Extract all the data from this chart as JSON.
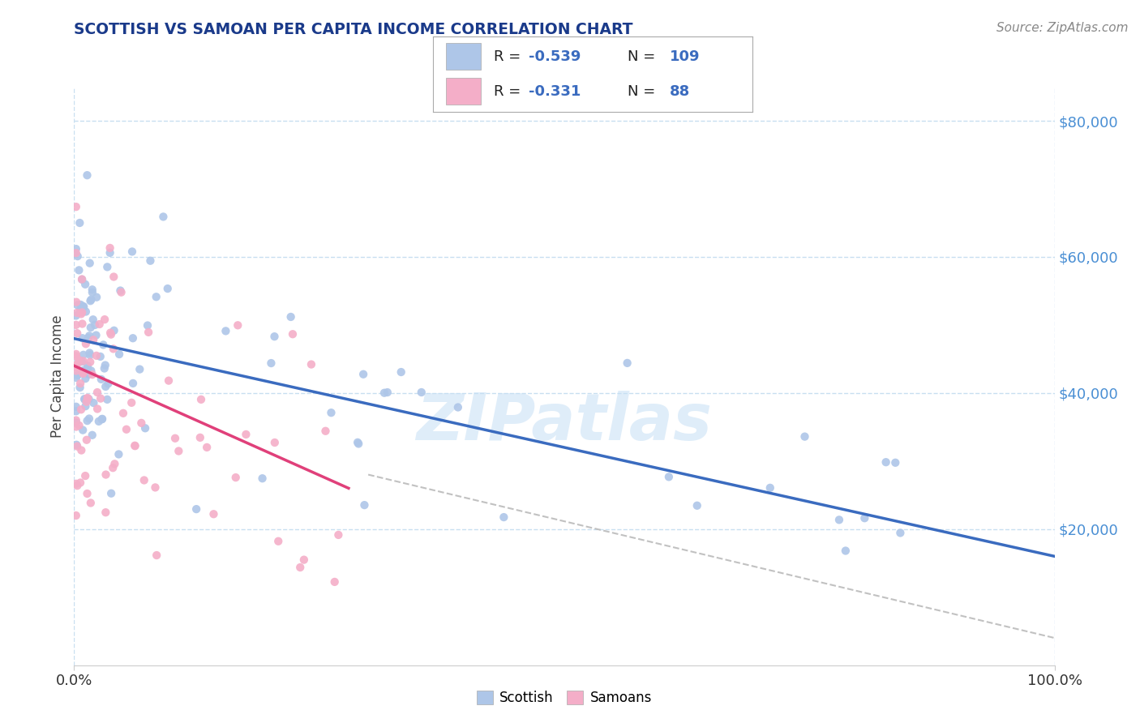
{
  "title": "SCOTTISH VS SAMOAN PER CAPITA INCOME CORRELATION CHART",
  "source_text": "Source: ZipAtlas.com",
  "ylabel": "Per Capita Income",
  "xlim": [
    0,
    100
  ],
  "ylim": [
    0,
    85000
  ],
  "yticks": [
    20000,
    40000,
    60000,
    80000
  ],
  "ytick_labels": [
    "$20,000",
    "$40,000",
    "$60,000",
    "$80,000"
  ],
  "xtick_labels": [
    "0.0%",
    "100.0%"
  ],
  "legend_label1": "Scottish",
  "legend_label2": "Samoans",
  "R1": -0.539,
  "N1": 109,
  "R2": -0.331,
  "N2": 88,
  "color_scottish": "#aec6e8",
  "color_samoans": "#f4aec8",
  "color_line_scottish": "#3a6bbf",
  "color_line_samoans": "#e0407a",
  "color_line_dashed": "#bbbbbb",
  "color_title": "#1a3a8a",
  "color_ytick_labels": "#4a8fd4",
  "watermark": "ZIPatlas",
  "background_color": "#ffffff",
  "grid_color": "#c8dff0",
  "scot_trend_x0": 0,
  "scot_trend_y0": 48000,
  "scot_trend_x1": 100,
  "scot_trend_y1": 16000,
  "sam_trend_x0": 0,
  "sam_trend_y0": 44000,
  "sam_trend_x1": 28,
  "sam_trend_y1": 26000,
  "dash_x0": 30,
  "dash_y0": 28000,
  "dash_x1": 100,
  "dash_y1": 4000
}
